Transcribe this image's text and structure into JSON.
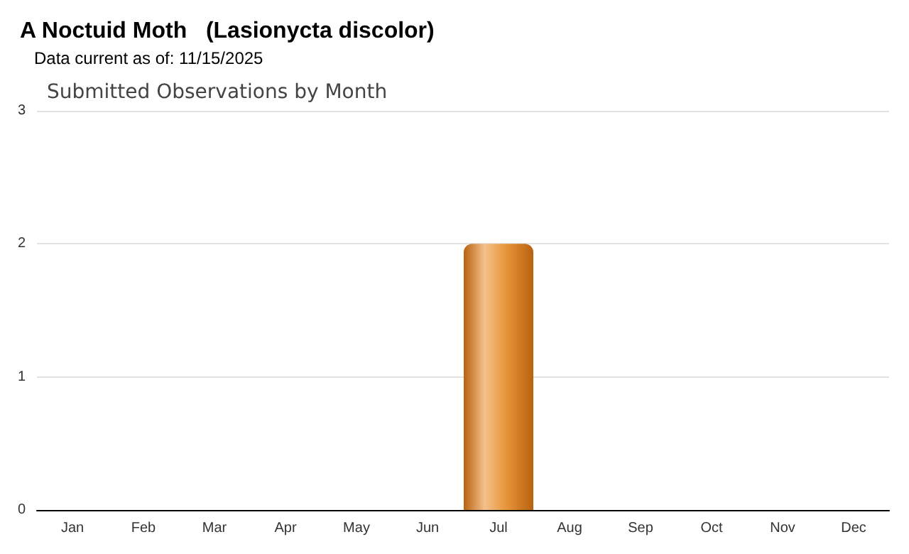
{
  "chart_data": {
    "type": "bar",
    "title": "A Noctuid Moth   (Lasionycta discolor)",
    "subtitle": "Data current as of: 11/15/2025",
    "annotations": [
      "Submitted Observations by Month"
    ],
    "categories": [
      "Jan",
      "Feb",
      "Mar",
      "Apr",
      "May",
      "Jun",
      "Jul",
      "Aug",
      "Sep",
      "Oct",
      "Nov",
      "Dec"
    ],
    "values": [
      0,
      0,
      0,
      0,
      0,
      0,
      2,
      0,
      0,
      0,
      0,
      0
    ],
    "color": "#e8963c",
    "ylim": [
      0,
      3
    ],
    "yticks": [
      0,
      1,
      2,
      3
    ],
    "grid": "y"
  }
}
